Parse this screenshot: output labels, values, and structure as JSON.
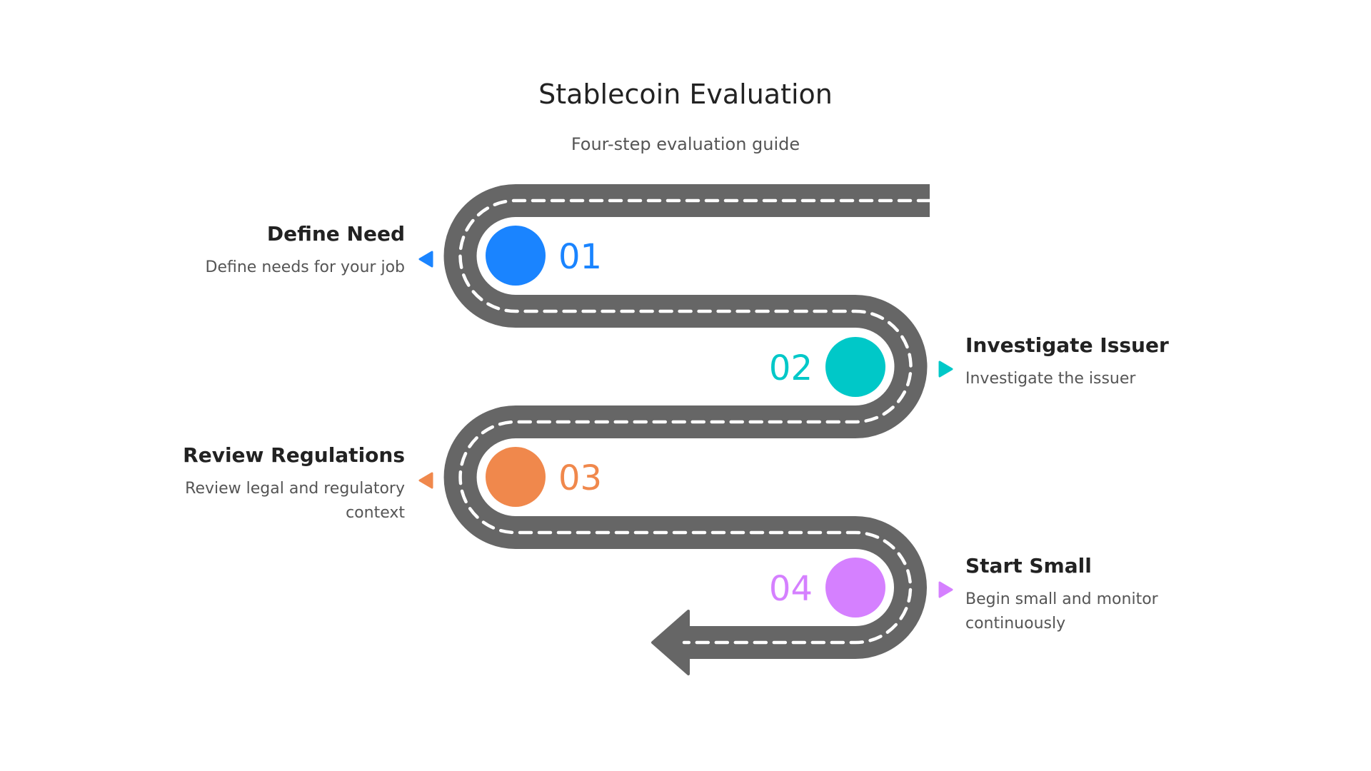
{
  "title": "Stablecoin Evaluation",
  "subtitle": "Four-step evaluation guide",
  "road_color": "#666666",
  "steps": [
    {
      "number": "01",
      "heading": "Define Need",
      "description": [
        "Define needs for your job"
      ],
      "color": "#1A84FF",
      "side": "left"
    },
    {
      "number": "02",
      "heading": "Investigate Issuer",
      "description": [
        "Investigate the issuer"
      ],
      "color": "#00C8C8",
      "side": "right"
    },
    {
      "number": "03",
      "heading": "Review Regulations",
      "description": [
        "Review legal and regulatory",
        "context"
      ],
      "color": "#F0884C",
      "side": "left"
    },
    {
      "number": "04",
      "heading": "Start Small",
      "description": [
        "Begin small and monitor",
        "continuously"
      ],
      "color": "#D580FF",
      "side": "right"
    }
  ]
}
